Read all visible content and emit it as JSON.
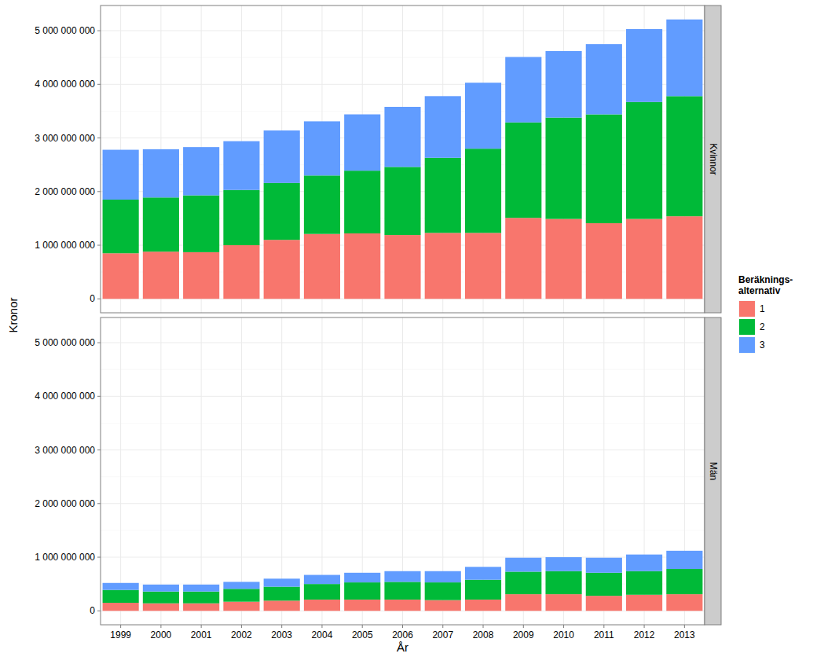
{
  "chart_data": [
    {
      "type": "bar",
      "title": "Kvinnor",
      "stacked": true,
      "grid": true,
      "legend": "right",
      "y_label": "Kronor",
      "legend_title": "Beräknings-alternativ",
      "categories": [
        "1999",
        "2000",
        "2001",
        "2002",
        "2003",
        "2004",
        "2005",
        "2006",
        "2007",
        "2008",
        "2009",
        "2010",
        "2011",
        "2012",
        "2013"
      ],
      "series": [
        {
          "name": "1",
          "color": "#F8766D",
          "values": [
            850000000,
            880000000,
            870000000,
            1000000000,
            1100000000,
            1210000000,
            1220000000,
            1190000000,
            1230000000,
            1230000000,
            1510000000,
            1490000000,
            1410000000,
            1490000000,
            1540000000
          ]
        },
        {
          "name": "2",
          "color": "#00BA38",
          "values": [
            1000000000,
            1010000000,
            1060000000,
            1030000000,
            1060000000,
            1090000000,
            1170000000,
            1270000000,
            1400000000,
            1570000000,
            1780000000,
            1890000000,
            2030000000,
            2180000000,
            2240000000
          ]
        },
        {
          "name": "3",
          "color": "#619CFF",
          "values": [
            930000000,
            900000000,
            900000000,
            910000000,
            980000000,
            1010000000,
            1050000000,
            1120000000,
            1150000000,
            1230000000,
            1220000000,
            1240000000,
            1310000000,
            1360000000,
            1430000000
          ]
        }
      ],
      "ylim": [
        -260000000,
        5470000000
      ],
      "yticks": [
        0,
        {
          "value": 1000000000,
          "label": "1 000 000 000"
        },
        {
          "value": 2000000000,
          "label": "2 000 000 000"
        },
        {
          "value": 3000000000,
          "label": "3 000 000 000"
        },
        {
          "value": 4000000000,
          "label": "4 000 000 000"
        },
        {
          "value": 5000000000,
          "label": "5 000 000 000"
        }
      ]
    },
    {
      "type": "bar",
      "title": "Män",
      "stacked": true,
      "grid": true,
      "legend": "right",
      "x_label": "År",
      "categories": [
        "1999",
        "2000",
        "2001",
        "2002",
        "2003",
        "2004",
        "2005",
        "2006",
        "2007",
        "2008",
        "2009",
        "2010",
        "2011",
        "2012",
        "2013"
      ],
      "series": [
        {
          "name": "1",
          "color": "#F8766D",
          "values": [
            150000000,
            140000000,
            140000000,
            170000000,
            190000000,
            210000000,
            210000000,
            210000000,
            200000000,
            210000000,
            310000000,
            310000000,
            280000000,
            300000000,
            310000000
          ]
        },
        {
          "name": "2",
          "color": "#00BA38",
          "values": [
            240000000,
            220000000,
            220000000,
            240000000,
            260000000,
            290000000,
            320000000,
            330000000,
            330000000,
            370000000,
            420000000,
            430000000,
            430000000,
            440000000,
            470000000
          ]
        },
        {
          "name": "3",
          "color": "#619CFF",
          "values": [
            130000000,
            130000000,
            130000000,
            130000000,
            150000000,
            170000000,
            180000000,
            200000000,
            210000000,
            240000000,
            260000000,
            260000000,
            280000000,
            310000000,
            340000000
          ]
        }
      ],
      "ylim": [
        -260000000,
        5470000000
      ],
      "yticks": [
        0,
        {
          "value": 1000000000,
          "label": "1 000 000 000"
        },
        {
          "value": 2000000000,
          "label": "2 000 000 000"
        },
        {
          "value": 3000000000,
          "label": "3 000 000 000"
        },
        {
          "value": 4000000000,
          "label": "4 000 000 000"
        },
        {
          "value": 5000000000,
          "label": "5 000 000 000"
        }
      ]
    }
  ]
}
